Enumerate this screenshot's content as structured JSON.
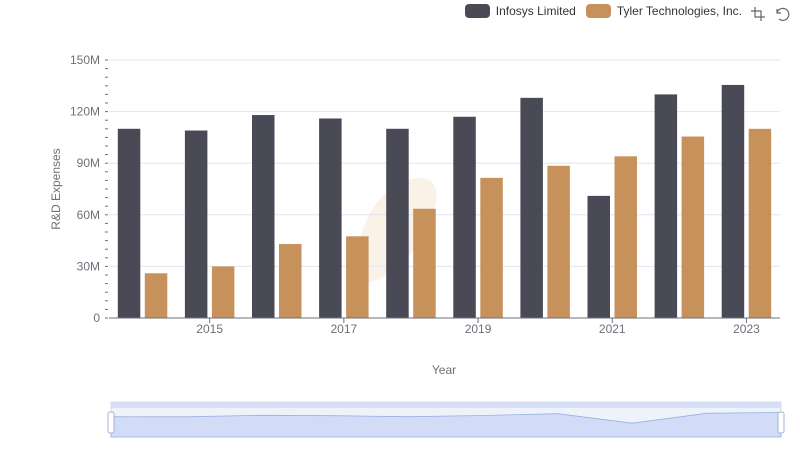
{
  "legend": {
    "items": [
      {
        "label": "Infosys Limited",
        "color": "#4a4a57"
      },
      {
        "label": "Tyler Technologies, Inc.",
        "color": "#c7915c"
      }
    ]
  },
  "toolbox": {
    "zoom_icon": "zoom-select-icon",
    "restore_icon": "restore-icon"
  },
  "chart_data": {
    "type": "bar",
    "categories": [
      "2014",
      "2015",
      "2016",
      "2017",
      "2018",
      "2019",
      "2020",
      "2021",
      "2022",
      "2023"
    ],
    "x_tick_labels": [
      "2015",
      "2017",
      "2019",
      "2021",
      "2023"
    ],
    "series": [
      {
        "name": "Infosys Limited",
        "color": "#4a4a57",
        "values": [
          110,
          109,
          118,
          116,
          110,
          117,
          128,
          71,
          130,
          135.5
        ]
      },
      {
        "name": "Tyler Technologies, Inc.",
        "color": "#c7915c",
        "values": [
          26,
          30,
          43,
          47.5,
          63.5,
          81.5,
          88.5,
          94,
          105.5,
          110
        ]
      }
    ],
    "xlabel": "Year",
    "ylabel": "R&D Expenses",
    "ylim": [
      0,
      150
    ],
    "y_ticks": [
      0,
      30,
      60,
      90,
      120,
      150
    ],
    "y_tick_labels": [
      "0",
      "30M",
      "60M",
      "90M",
      "120M",
      "150M"
    ],
    "grid": true,
    "legend_position": "top-right",
    "has_dataZoom_slider": true
  }
}
